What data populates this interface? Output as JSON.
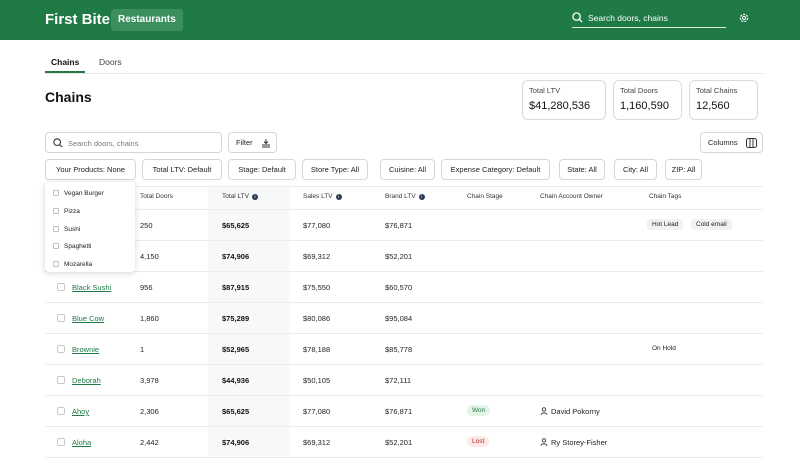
{
  "header": {
    "brand": "First Bite",
    "nav_button": "Restaurants",
    "search_placeholder": "Search doors, chains"
  },
  "tabs": [
    {
      "label": "Chains",
      "active": true
    },
    {
      "label": "Doors",
      "active": false
    }
  ],
  "page_title": "Chains",
  "stats": [
    {
      "label": "Total LTV",
      "value": "$41,280,536"
    },
    {
      "label": "Total Doors",
      "value": "1,160,590"
    },
    {
      "label": "Total Chains",
      "value": "12,560"
    }
  ],
  "toolbar": {
    "search_placeholder": "Search doors, chains",
    "filter_label": "Filter",
    "columns_label": "Columns"
  },
  "filters": [
    "Your Products: None",
    "Total LTV: Default",
    "Stage: Default",
    "Store Type: All",
    "Cuisine: All",
    "Expense Category: Default",
    "State: All",
    "City: All",
    "ZIP: All"
  ],
  "table": {
    "headers": [
      "Total Doors",
      "Total LTV",
      "Sales LTV",
      "Brand LTV",
      "Chain Stage",
      "Chain Account Owner",
      "Chain Tags"
    ],
    "rows": [
      {
        "name": "",
        "doors": "250",
        "total_ltv": "$65,625",
        "sales_ltv": "$77,080",
        "brand_ltv": "$76,871",
        "stage": "",
        "owner": "",
        "tags": [
          "Hot Lead",
          "Cold email"
        ]
      },
      {
        "name": "",
        "doors": "4,150",
        "total_ltv": "$74,906",
        "sales_ltv": "$69,312",
        "brand_ltv": "$52,201",
        "stage": "",
        "owner": "",
        "tags": []
      },
      {
        "name": "Black Sushi",
        "doors": "956",
        "total_ltv": "$87,915",
        "sales_ltv": "$75,550",
        "brand_ltv": "$60,570",
        "stage": "",
        "owner": "",
        "tags": []
      },
      {
        "name": "Blue Cow",
        "doors": "1,860",
        "total_ltv": "$75,289",
        "sales_ltv": "$80,086",
        "brand_ltv": "$95,084",
        "stage": "",
        "owner": "",
        "tags": []
      },
      {
        "name": "Brownie",
        "doors": "1",
        "total_ltv": "$52,965",
        "sales_ltv": "$78,188",
        "brand_ltv": "$85,778",
        "stage": "",
        "owner": "",
        "tags": [
          "On Hold"
        ]
      },
      {
        "name": "Deborah",
        "doors": "3,978",
        "total_ltv": "$44,936",
        "sales_ltv": "$50,105",
        "brand_ltv": "$72,111",
        "stage": "",
        "owner": "",
        "tags": []
      },
      {
        "name": "Ahoy",
        "doors": "2,306",
        "total_ltv": "$65,625",
        "sales_ltv": "$77,080",
        "brand_ltv": "$76,871",
        "stage": "Won",
        "owner": "David Pokorny",
        "tags": []
      },
      {
        "name": "Aloha",
        "doors": "2,442",
        "total_ltv": "$74,906",
        "sales_ltv": "$69,312",
        "brand_ltv": "$52,201",
        "stage": "Lost",
        "owner": "Ry Storey-Fisher",
        "tags": []
      }
    ]
  },
  "products_dropdown": {
    "options": [
      "Vegan Burger",
      "Pizza",
      "Sushi",
      "Spaghetti",
      "Mozarella"
    ]
  },
  "colors": {
    "brand_green": "#1f7a45",
    "won": "#1f7a45",
    "lost": "#b42318"
  }
}
